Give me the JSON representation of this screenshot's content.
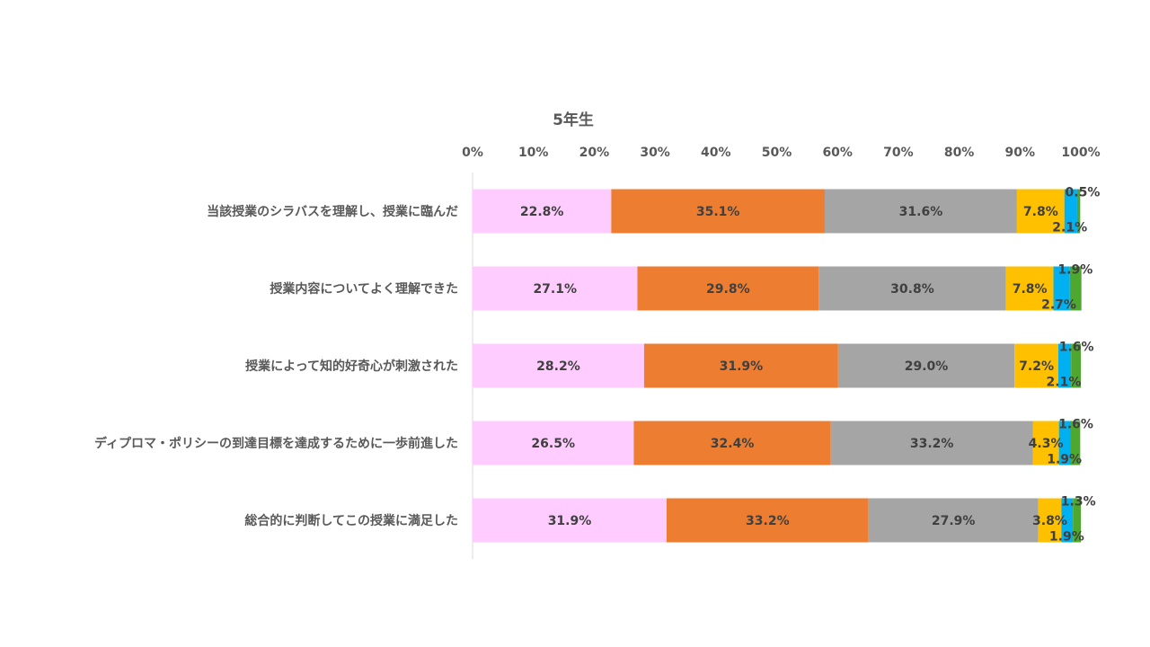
{
  "chart_data": {
    "type": "bar",
    "orientation": "horizontal",
    "stacked": "percent",
    "title": "5年生",
    "xlim": [
      0,
      100
    ],
    "x_ticks": [
      "0%",
      "10%",
      "20%",
      "30%",
      "40%",
      "50%",
      "60%",
      "70%",
      "80%",
      "90%",
      "100%"
    ],
    "x_axis_position": "top",
    "grid": false,
    "legend": "none",
    "categories": [
      "当該授業のシラバスを理解し、授業に臨んだ",
      "授業内容についてよく理解できた",
      "授業によって知的好奇心が刺激された",
      "ディプロマ・ポリシーの到達目標を達成するために一歩前進した",
      "総合的に判断してこの授業に満足した"
    ],
    "series": [
      {
        "color": "#FFCCFF",
        "values": [
          22.8,
          27.1,
          28.2,
          26.5,
          31.9
        ],
        "labels": [
          "22.8%",
          "27.1%",
          "28.2%",
          "26.5%",
          "31.9%"
        ]
      },
      {
        "color": "#ED7D31",
        "values": [
          35.1,
          29.8,
          31.9,
          32.4,
          33.2
        ],
        "labels": [
          "35.1%",
          "29.8%",
          "31.9%",
          "32.4%",
          "33.2%"
        ]
      },
      {
        "color": "#A5A5A5",
        "values": [
          31.6,
          30.8,
          29.0,
          33.2,
          27.9
        ],
        "labels": [
          "31.6%",
          "30.8%",
          "29.0%",
          "33.2%",
          "27.9%"
        ]
      },
      {
        "color": "#FFC000",
        "values": [
          7.8,
          7.8,
          7.2,
          4.3,
          3.8
        ],
        "labels": [
          "7.8%",
          "7.8%",
          "7.2%",
          "4.3%",
          "3.8%"
        ]
      },
      {
        "color": "#00B0F0",
        "values": [
          2.1,
          2.7,
          2.1,
          1.9,
          1.9
        ],
        "labels": [
          "2.1%",
          "2.7%",
          "2.1%",
          "1.9%",
          "1.9%"
        ]
      },
      {
        "color": "#4EA72E",
        "values": [
          0.5,
          1.9,
          1.6,
          1.6,
          1.3
        ],
        "labels": [
          "0.5%",
          "1.9%",
          "1.6%",
          "1.6%",
          "1.3%"
        ]
      }
    ]
  }
}
